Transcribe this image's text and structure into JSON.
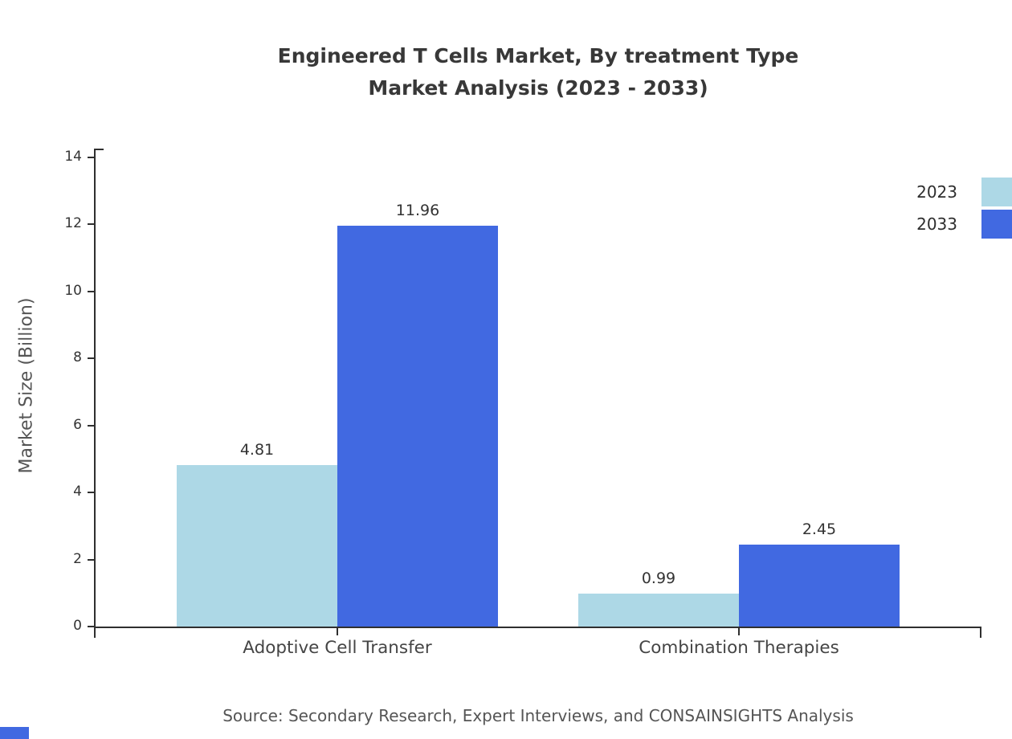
{
  "title": {
    "line1": "Engineered T Cells Market, By treatment Type",
    "line2": "Market Analysis (2023 - 2033)"
  },
  "source": {
    "text": "Source: Secondary Research, Expert Interviews, and CONSAINSIGHTS Analysis"
  },
  "colors": {
    "series_2023": "#ADD8E6",
    "series_2033": "#4169E1",
    "axis": "#2F2F2F",
    "title_text": "#383838",
    "muted_text": "#555555"
  },
  "chart_data": {
    "type": "bar",
    "title": "Engineered T Cells Market, By treatment Type Market Analysis (2023 - 2033)",
    "categories": [
      "Adoptive Cell Transfer",
      "Combination Therapies"
    ],
    "series": [
      {
        "name": "2023",
        "color": "#ADD8E6",
        "values": [
          4.81,
          0.99
        ]
      },
      {
        "name": "2033",
        "color": "#4169E1",
        "values": [
          11.96,
          2.45
        ]
      }
    ],
    "xlabel": "",
    "ylabel": "Market Size (Billion)",
    "ylim": [
      0,
      14
    ],
    "yticks": [
      0,
      2,
      4,
      6,
      8,
      10,
      12,
      14
    ],
    "legend_position": "top-right",
    "grid": false
  }
}
